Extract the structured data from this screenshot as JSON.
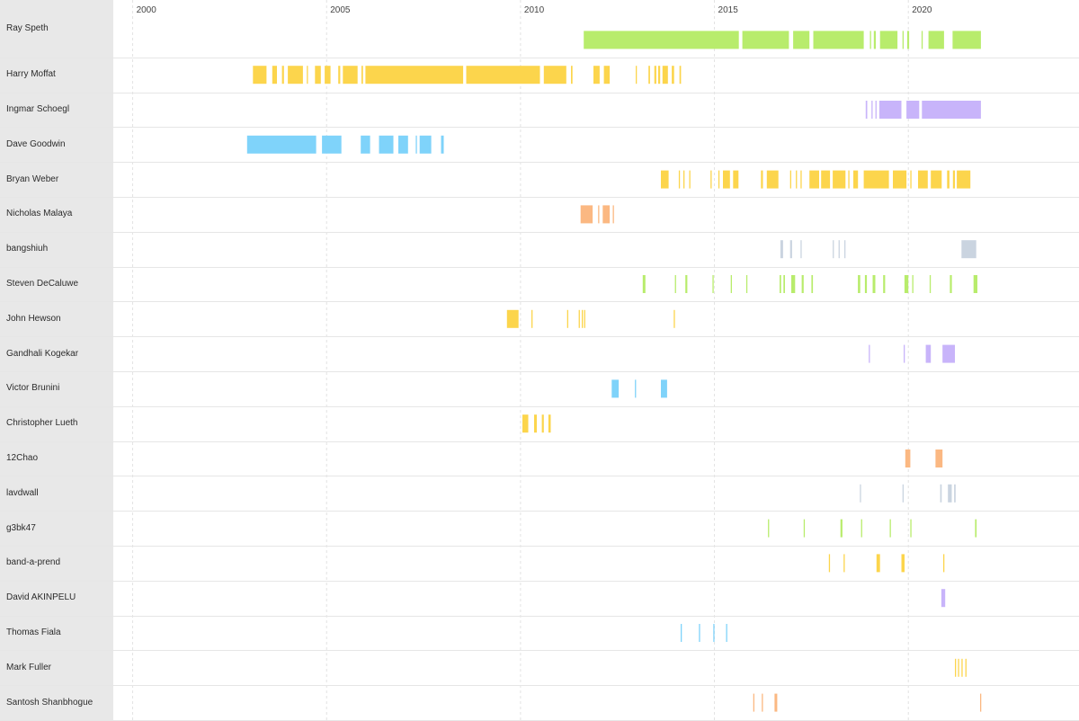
{
  "chart_data": {
    "type": "timeline",
    "x_axis": {
      "unit": "year",
      "range": [
        1999.5,
        2024.4
      ],
      "ticks": [
        "2000",
        "2005",
        "2010",
        "2015",
        "2020"
      ],
      "tick_values": [
        2000,
        2005,
        2010,
        2015,
        2020
      ],
      "grid": "dashed vertical"
    },
    "rows": [
      {
        "name": "Ray Speth",
        "color": "#b8ec6c",
        "segments": [
          [
            2011.63,
            2015.63
          ],
          [
            2015.72,
            2016.92
          ],
          [
            2017.03,
            2017.45
          ],
          [
            2017.55,
            2018.85
          ],
          [
            2019.01,
            2019.04
          ],
          [
            2019.11,
            2019.16
          ],
          [
            2019.27,
            2019.72
          ],
          [
            2019.85,
            2019.88
          ],
          [
            2019.97,
            2020.02
          ],
          [
            2020.34,
            2020.37
          ],
          [
            2020.52,
            2020.92
          ],
          [
            2021.14,
            2021.87
          ]
        ]
      },
      {
        "name": "Harry Moffat",
        "color": "#fcd54c",
        "segments": [
          [
            2003.1,
            2003.45
          ],
          [
            2003.6,
            2003.72
          ],
          [
            2003.85,
            2003.9
          ],
          [
            2004.0,
            2004.39
          ],
          [
            2004.49,
            2004.52
          ],
          [
            2004.7,
            2004.85
          ],
          [
            2004.95,
            2005.1
          ],
          [
            2005.3,
            2005.35
          ],
          [
            2005.42,
            2005.8
          ],
          [
            2005.9,
            2005.94
          ],
          [
            2006.0,
            2008.52
          ],
          [
            2008.6,
            2010.5
          ],
          [
            2010.6,
            2011.18
          ],
          [
            2011.3,
            2011.34
          ],
          [
            2011.88,
            2012.04
          ],
          [
            2012.15,
            2012.3
          ],
          [
            2012.97,
            2013.0
          ],
          [
            2013.3,
            2013.34
          ],
          [
            2013.45,
            2013.5
          ],
          [
            2013.55,
            2013.6
          ],
          [
            2013.66,
            2013.8
          ],
          [
            2013.9,
            2013.96
          ],
          [
            2014.1,
            2014.14
          ]
        ]
      },
      {
        "name": "Ingmar Schoegl",
        "color": "#c8b4fa",
        "segments": [
          [
            2018.9,
            2018.94
          ],
          [
            2019.05,
            2019.08
          ],
          [
            2019.15,
            2019.18
          ],
          [
            2019.25,
            2019.82
          ],
          [
            2019.95,
            2020.28
          ],
          [
            2020.35,
            2021.87
          ]
        ]
      },
      {
        "name": "Dave Goodwin",
        "color": "#7fd3fa",
        "segments": [
          [
            2002.95,
            2004.73
          ],
          [
            2004.88,
            2005.38
          ],
          [
            2005.88,
            2006.12
          ],
          [
            2006.35,
            2006.72
          ],
          [
            2006.85,
            2007.1
          ],
          [
            2007.3,
            2007.33
          ],
          [
            2007.4,
            2007.7
          ],
          [
            2007.95,
            2008.02
          ]
        ]
      },
      {
        "name": "Bryan Weber",
        "color": "#fcd54c",
        "segments": [
          [
            2013.62,
            2013.82
          ],
          [
            2014.08,
            2014.1
          ],
          [
            2014.2,
            2014.22
          ],
          [
            2014.35,
            2014.38
          ],
          [
            2014.9,
            2014.93
          ],
          [
            2015.1,
            2015.13
          ],
          [
            2015.22,
            2015.4
          ],
          [
            2015.48,
            2015.62
          ],
          [
            2016.2,
            2016.25
          ],
          [
            2016.35,
            2016.65
          ],
          [
            2016.95,
            2016.98
          ],
          [
            2017.1,
            2017.13
          ],
          [
            2017.22,
            2017.25
          ],
          [
            2017.45,
            2017.7
          ],
          [
            2017.75,
            2017.98
          ],
          [
            2018.05,
            2018.38
          ],
          [
            2018.45,
            2018.48
          ],
          [
            2018.58,
            2018.7
          ],
          [
            2018.85,
            2019.5
          ],
          [
            2019.6,
            2019.95
          ],
          [
            2020.05,
            2020.08
          ],
          [
            2020.25,
            2020.5
          ],
          [
            2020.58,
            2020.86
          ],
          [
            2021.0,
            2021.06
          ],
          [
            2021.15,
            2021.2
          ],
          [
            2021.25,
            2021.6
          ]
        ]
      },
      {
        "name": "Nicholas Malaya",
        "color": "#fbb882",
        "segments": [
          [
            2011.55,
            2011.86
          ],
          [
            2012.0,
            2012.03
          ],
          [
            2012.12,
            2012.3
          ],
          [
            2012.38,
            2012.4
          ]
        ]
      },
      {
        "name": "bangshiuh",
        "color": "#cad4e0",
        "segments": [
          [
            2016.7,
            2016.77
          ],
          [
            2016.95,
            2017.0
          ],
          [
            2017.22,
            2017.25
          ],
          [
            2018.05,
            2018.08
          ],
          [
            2018.2,
            2018.23
          ],
          [
            2018.35,
            2018.38
          ],
          [
            2021.37,
            2021.75
          ]
        ]
      },
      {
        "name": "Steven DeCaluwe",
        "color": "#b8ec6c",
        "segments": [
          [
            2013.15,
            2013.22
          ],
          [
            2013.98,
            2014.01
          ],
          [
            2014.25,
            2014.3
          ],
          [
            2014.95,
            2014.98
          ],
          [
            2015.42,
            2015.45
          ],
          [
            2015.82,
            2015.85
          ],
          [
            2016.68,
            2016.72
          ],
          [
            2016.78,
            2016.82
          ],
          [
            2016.98,
            2017.08
          ],
          [
            2017.25,
            2017.3
          ],
          [
            2017.5,
            2017.54
          ],
          [
            2018.7,
            2018.76
          ],
          [
            2018.88,
            2018.93
          ],
          [
            2019.08,
            2019.15
          ],
          [
            2019.35,
            2019.4
          ],
          [
            2019.9,
            2020.0
          ],
          [
            2020.1,
            2020.13
          ],
          [
            2020.55,
            2020.58
          ],
          [
            2021.07,
            2021.12
          ],
          [
            2021.68,
            2021.78
          ]
        ]
      },
      {
        "name": "John Hewson",
        "color": "#fcd54c",
        "segments": [
          [
            2009.65,
            2009.95
          ],
          [
            2010.28,
            2010.3
          ],
          [
            2011.2,
            2011.23
          ],
          [
            2011.5,
            2011.52
          ],
          [
            2011.58,
            2011.6
          ],
          [
            2011.64,
            2011.67
          ],
          [
            2013.95,
            2013.98
          ]
        ]
      },
      {
        "name": "Gandhali Kogekar",
        "color": "#c8b4fa",
        "segments": [
          [
            2018.98,
            2019.0
          ],
          [
            2019.88,
            2019.91
          ],
          [
            2020.45,
            2020.58
          ],
          [
            2020.88,
            2021.2
          ]
        ]
      },
      {
        "name": "Victor Brunini",
        "color": "#7fd3fa",
        "segments": [
          [
            2012.35,
            2012.53
          ],
          [
            2012.95,
            2012.98
          ],
          [
            2013.62,
            2013.78
          ]
        ]
      },
      {
        "name": "Christopher Lueth",
        "color": "#fcd54c",
        "segments": [
          [
            2010.05,
            2010.2
          ],
          [
            2010.35,
            2010.42
          ],
          [
            2010.55,
            2010.6
          ],
          [
            2010.72,
            2010.78
          ]
        ]
      },
      {
        "name": "12Chao",
        "color": "#fbb882",
        "segments": [
          [
            2019.92,
            2020.05
          ],
          [
            2020.7,
            2020.88
          ]
        ]
      },
      {
        "name": "lavdwall",
        "color": "#cad4e0",
        "segments": [
          [
            2018.75,
            2018.78
          ],
          [
            2019.85,
            2019.88
          ],
          [
            2020.82,
            2020.86
          ],
          [
            2021.02,
            2021.12
          ],
          [
            2021.18,
            2021.22
          ]
        ]
      },
      {
        "name": "g3bk47",
        "color": "#b8ec6c",
        "segments": [
          [
            2016.38,
            2016.41
          ],
          [
            2017.3,
            2017.33
          ],
          [
            2018.25,
            2018.3
          ],
          [
            2018.78,
            2018.81
          ],
          [
            2019.52,
            2019.55
          ],
          [
            2020.05,
            2020.08
          ],
          [
            2021.72,
            2021.76
          ]
        ]
      },
      {
        "name": "band-a-prend",
        "color": "#fcd54c",
        "segments": [
          [
            2017.95,
            2017.98
          ],
          [
            2018.33,
            2018.36
          ],
          [
            2019.18,
            2019.27
          ],
          [
            2019.82,
            2019.9
          ],
          [
            2020.9,
            2020.93
          ]
        ]
      },
      {
        "name": "David AKINPELU",
        "color": "#c8b4fa",
        "segments": [
          [
            2020.85,
            2020.95
          ]
        ]
      },
      {
        "name": "Thomas Fiala",
        "color": "#7fd3fa",
        "segments": [
          [
            2014.13,
            2014.16
          ],
          [
            2014.6,
            2014.63
          ],
          [
            2014.97,
            2015.0
          ],
          [
            2015.3,
            2015.33
          ]
        ]
      },
      {
        "name": "Mark Fuller",
        "color": "#fcd54c",
        "segments": [
          [
            2021.2,
            2021.23
          ],
          [
            2021.28,
            2021.31
          ],
          [
            2021.37,
            2021.4
          ],
          [
            2021.47,
            2021.5
          ]
        ]
      },
      {
        "name": "Santosh Shanbhogue",
        "color": "#fbb882",
        "segments": [
          [
            2016.0,
            2016.03
          ],
          [
            2016.22,
            2016.25
          ],
          [
            2016.55,
            2016.62
          ],
          [
            2021.85,
            2021.88
          ]
        ]
      }
    ]
  }
}
